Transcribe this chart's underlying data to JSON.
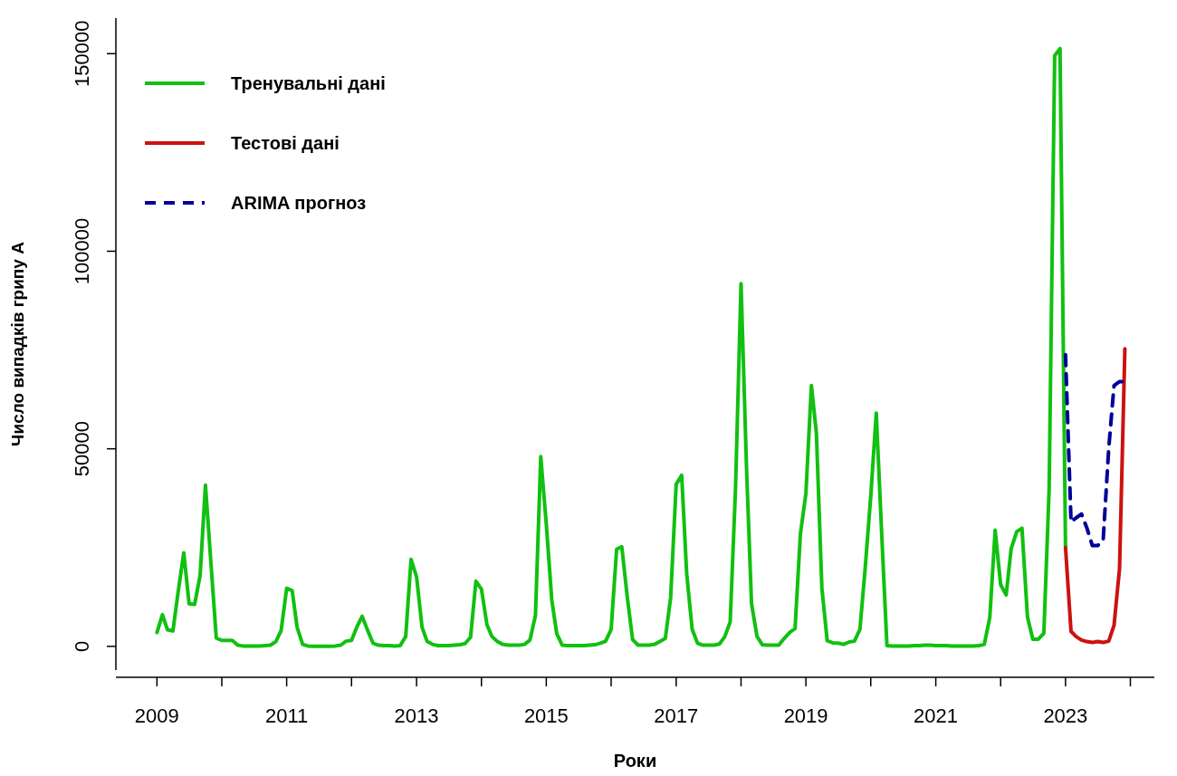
{
  "chart_data": {
    "type": "line",
    "xlabel": "Роки",
    "ylabel": "Число випадків грипу А",
    "xlim": [
      "2008-05-15",
      "2024-05-15"
    ],
    "ylim": [
      -6000,
      159000
    ],
    "xticks": [
      "2009",
      {
        "value": "2010",
        "label": null
      },
      "2011",
      {
        "value": "2012",
        "label": null
      },
      "2013",
      {
        "value": "2014",
        "label": null
      },
      "2015",
      {
        "value": "2016",
        "label": null
      },
      "2017",
      {
        "value": "2018",
        "label": null
      },
      "2019",
      {
        "value": "2020",
        "label": null
      },
      "2021",
      {
        "value": "2022",
        "label": null
      },
      "2023",
      {
        "value": "2024",
        "label": null
      }
    ],
    "yticks": [
      0,
      50000,
      100000,
      150000
    ],
    "legend": "top left",
    "marker": "none",
    "series": [
      {
        "name": "Тренувальні дані",
        "color": "#11c011",
        "line_style": "solid",
        "x": [
          "2009-01",
          "2009-02",
          "2009-03",
          "2009-04",
          "2009-05",
          "2009-06",
          "2009-07",
          "2009-08",
          "2009-09",
          "2009-10",
          "2009-11",
          "2009-12",
          "2010-01",
          "2010-02",
          "2010-03",
          "2010-04",
          "2010-05",
          "2010-06",
          "2010-07",
          "2010-08",
          "2010-09",
          "2010-10",
          "2010-11",
          "2010-12",
          "2011-01",
          "2011-02",
          "2011-03",
          "2011-04",
          "2011-05",
          "2011-06",
          "2011-07",
          "2011-08",
          "2011-09",
          "2011-10",
          "2011-11",
          "2011-12",
          "2012-01",
          "2012-02",
          "2012-03",
          "2012-04",
          "2012-05",
          "2012-06",
          "2012-07",
          "2012-08",
          "2012-09",
          "2012-10",
          "2012-11",
          "2012-12",
          "2013-01",
          "2013-02",
          "2013-03",
          "2013-04",
          "2013-05",
          "2013-06",
          "2013-07",
          "2013-08",
          "2013-09",
          "2013-10",
          "2013-11",
          "2013-12",
          "2014-01",
          "2014-02",
          "2014-03",
          "2014-04",
          "2014-05",
          "2014-06",
          "2014-07",
          "2014-08",
          "2014-09",
          "2014-10",
          "2014-11",
          "2014-12",
          "2015-01",
          "2015-02",
          "2015-03",
          "2015-04",
          "2015-05",
          "2015-06",
          "2015-07",
          "2015-08",
          "2015-09",
          "2015-10",
          "2015-11",
          "2015-12",
          "2016-01",
          "2016-02",
          "2016-03",
          "2016-04",
          "2016-05",
          "2016-06",
          "2016-07",
          "2016-08",
          "2016-09",
          "2016-10",
          "2016-11",
          "2016-12",
          "2017-01",
          "2017-02",
          "2017-03",
          "2017-04",
          "2017-05",
          "2017-06",
          "2017-07",
          "2017-08",
          "2017-09",
          "2017-10",
          "2017-11",
          "2017-12",
          "2018-01",
          "2018-02",
          "2018-03",
          "2018-04",
          "2018-05",
          "2018-06",
          "2018-07",
          "2018-08",
          "2018-09",
          "2018-10",
          "2018-11",
          "2018-12",
          "2019-01",
          "2019-02",
          "2019-03",
          "2019-04",
          "2019-05",
          "2019-06",
          "2019-07",
          "2019-08",
          "2019-09",
          "2019-10",
          "2019-11",
          "2019-12",
          "2020-01",
          "2020-02",
          "2020-03",
          "2020-04",
          "2020-05",
          "2020-06",
          "2020-07",
          "2020-08",
          "2020-09",
          "2020-10",
          "2020-11",
          "2020-12",
          "2021-01",
          "2021-02",
          "2021-03",
          "2021-04",
          "2021-05",
          "2021-06",
          "2021-07",
          "2021-08",
          "2021-09",
          "2021-10",
          "2021-11",
          "2021-12",
          "2022-01",
          "2022-02",
          "2022-03",
          "2022-04",
          "2022-05",
          "2022-06",
          "2022-07",
          "2022-08",
          "2022-09",
          "2022-10",
          "2022-11",
          "2022-12",
          "2023-01"
        ],
        "values": [
          3500,
          8000,
          4200,
          3900,
          14000,
          23700,
          10800,
          10600,
          18000,
          40800,
          21000,
          2100,
          1500,
          1500,
          1500,
          300,
          100,
          100,
          100,
          100,
          200,
          300,
          1200,
          4000,
          14700,
          14100,
          4800,
          500,
          100,
          0,
          0,
          0,
          0,
          100,
          300,
          1300,
          1500,
          5000,
          7600,
          4000,
          800,
          300,
          200,
          200,
          100,
          200,
          2500,
          22000,
          17600,
          4800,
          1300,
          500,
          200,
          200,
          200,
          300,
          400,
          700,
          2300,
          16500,
          14500,
          5500,
          2500,
          1200,
          500,
          300,
          300,
          300,
          500,
          1600,
          7800,
          48000,
          31000,
          11700,
          3200,
          300,
          200,
          200,
          200,
          200,
          300,
          400,
          800,
          1300,
          4300,
          24600,
          25200,
          12400,
          1700,
          300,
          300,
          300,
          500,
          1200,
          2000,
          12400,
          41000,
          43300,
          18500,
          4300,
          800,
          300,
          300,
          300,
          600,
          2400,
          6200,
          40000,
          91800,
          45000,
          10800,
          2500,
          400,
          300,
          300,
          300,
          2000,
          3500,
          4500,
          28400,
          38700,
          66000,
          54000,
          14700,
          1400,
          900,
          800,
          500,
          1100,
          1300,
          4300,
          20000,
          38000,
          59000,
          30000,
          200,
          100,
          100,
          100,
          100,
          200,
          200,
          300,
          300,
          200,
          200,
          200,
          100,
          100,
          100,
          100,
          100,
          200,
          500,
          7400,
          29400,
          15600,
          13000,
          24700,
          29000,
          29900,
          7400,
          1800,
          1800,
          3300,
          40000,
          149500,
          151300,
          25000
        ]
      },
      {
        "name": "Тестові дані",
        "color": "#cc1111",
        "line_style": "solid",
        "x": [
          "2023-01",
          "2023-02",
          "2023-03",
          "2023-04",
          "2023-05",
          "2023-06",
          "2023-07",
          "2023-08",
          "2023-09",
          "2023-10",
          "2023-11",
          "2023-12"
        ],
        "values": [
          25000,
          3800,
          2500,
          1600,
          1200,
          1000,
          1200,
          1000,
          1300,
          5300,
          19700,
          75300
        ]
      },
      {
        "name": "ARIMA прогноз",
        "color": "#000099",
        "line_style": "dashed",
        "x": [
          "2023-01",
          "2023-02",
          "2023-03",
          "2023-04",
          "2023-05",
          "2023-06",
          "2023-07",
          "2023-08",
          "2023-09",
          "2023-10",
          "2023-11",
          "2023-12"
        ],
        "values": [
          73800,
          31500,
          32500,
          33500,
          30000,
          25500,
          25500,
          27000,
          50000,
          66000,
          67000,
          67000
        ]
      }
    ]
  }
}
